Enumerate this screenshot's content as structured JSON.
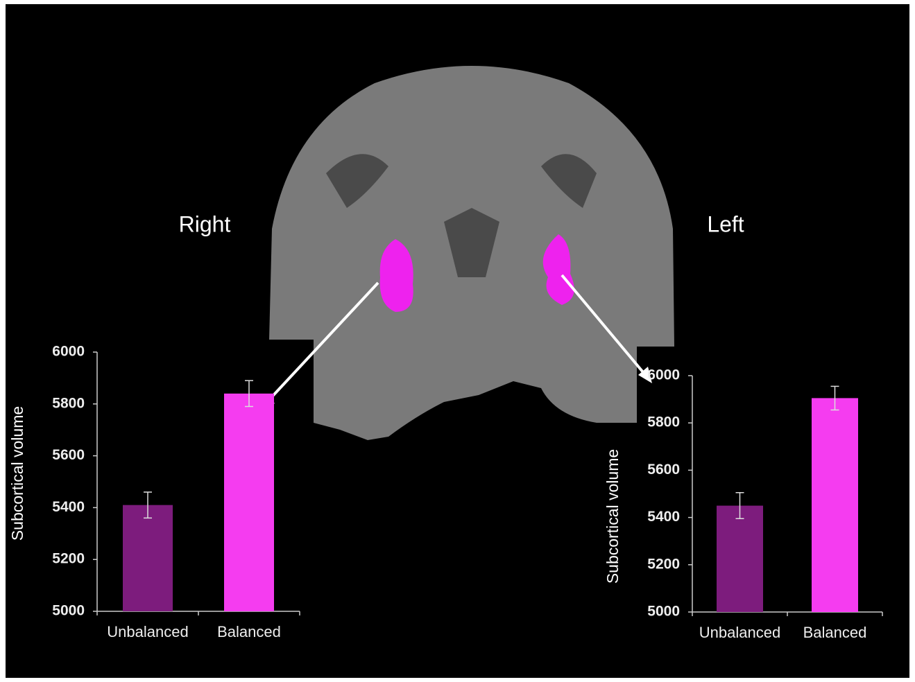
{
  "hemisphere_labels": [
    "Right",
    "Left"
  ],
  "chart_data": [
    {
      "type": "bar",
      "ylabel": "Subcortical volume",
      "categories": [
        "Unbalanced",
        "Balanced"
      ],
      "values": [
        5410,
        5840
      ],
      "errors": [
        50,
        50
      ],
      "colors": [
        "#7d1c7d",
        "#f53cf0"
      ],
      "ylim": [
        5000,
        6000
      ],
      "yticks": [
        5000,
        5200,
        5400,
        5600,
        5800,
        6000
      ]
    },
    {
      "type": "bar",
      "ylabel": "Subcortical volume",
      "categories": [
        "Unbalanced",
        "Balanced"
      ],
      "values": [
        5450,
        5905
      ],
      "errors": [
        55,
        50
      ],
      "colors": [
        "#7d1c7d",
        "#f53cf0"
      ],
      "ylim": [
        5000,
        6000
      ],
      "yticks": [
        5000,
        5200,
        5400,
        5600,
        5800,
        6000
      ]
    }
  ]
}
